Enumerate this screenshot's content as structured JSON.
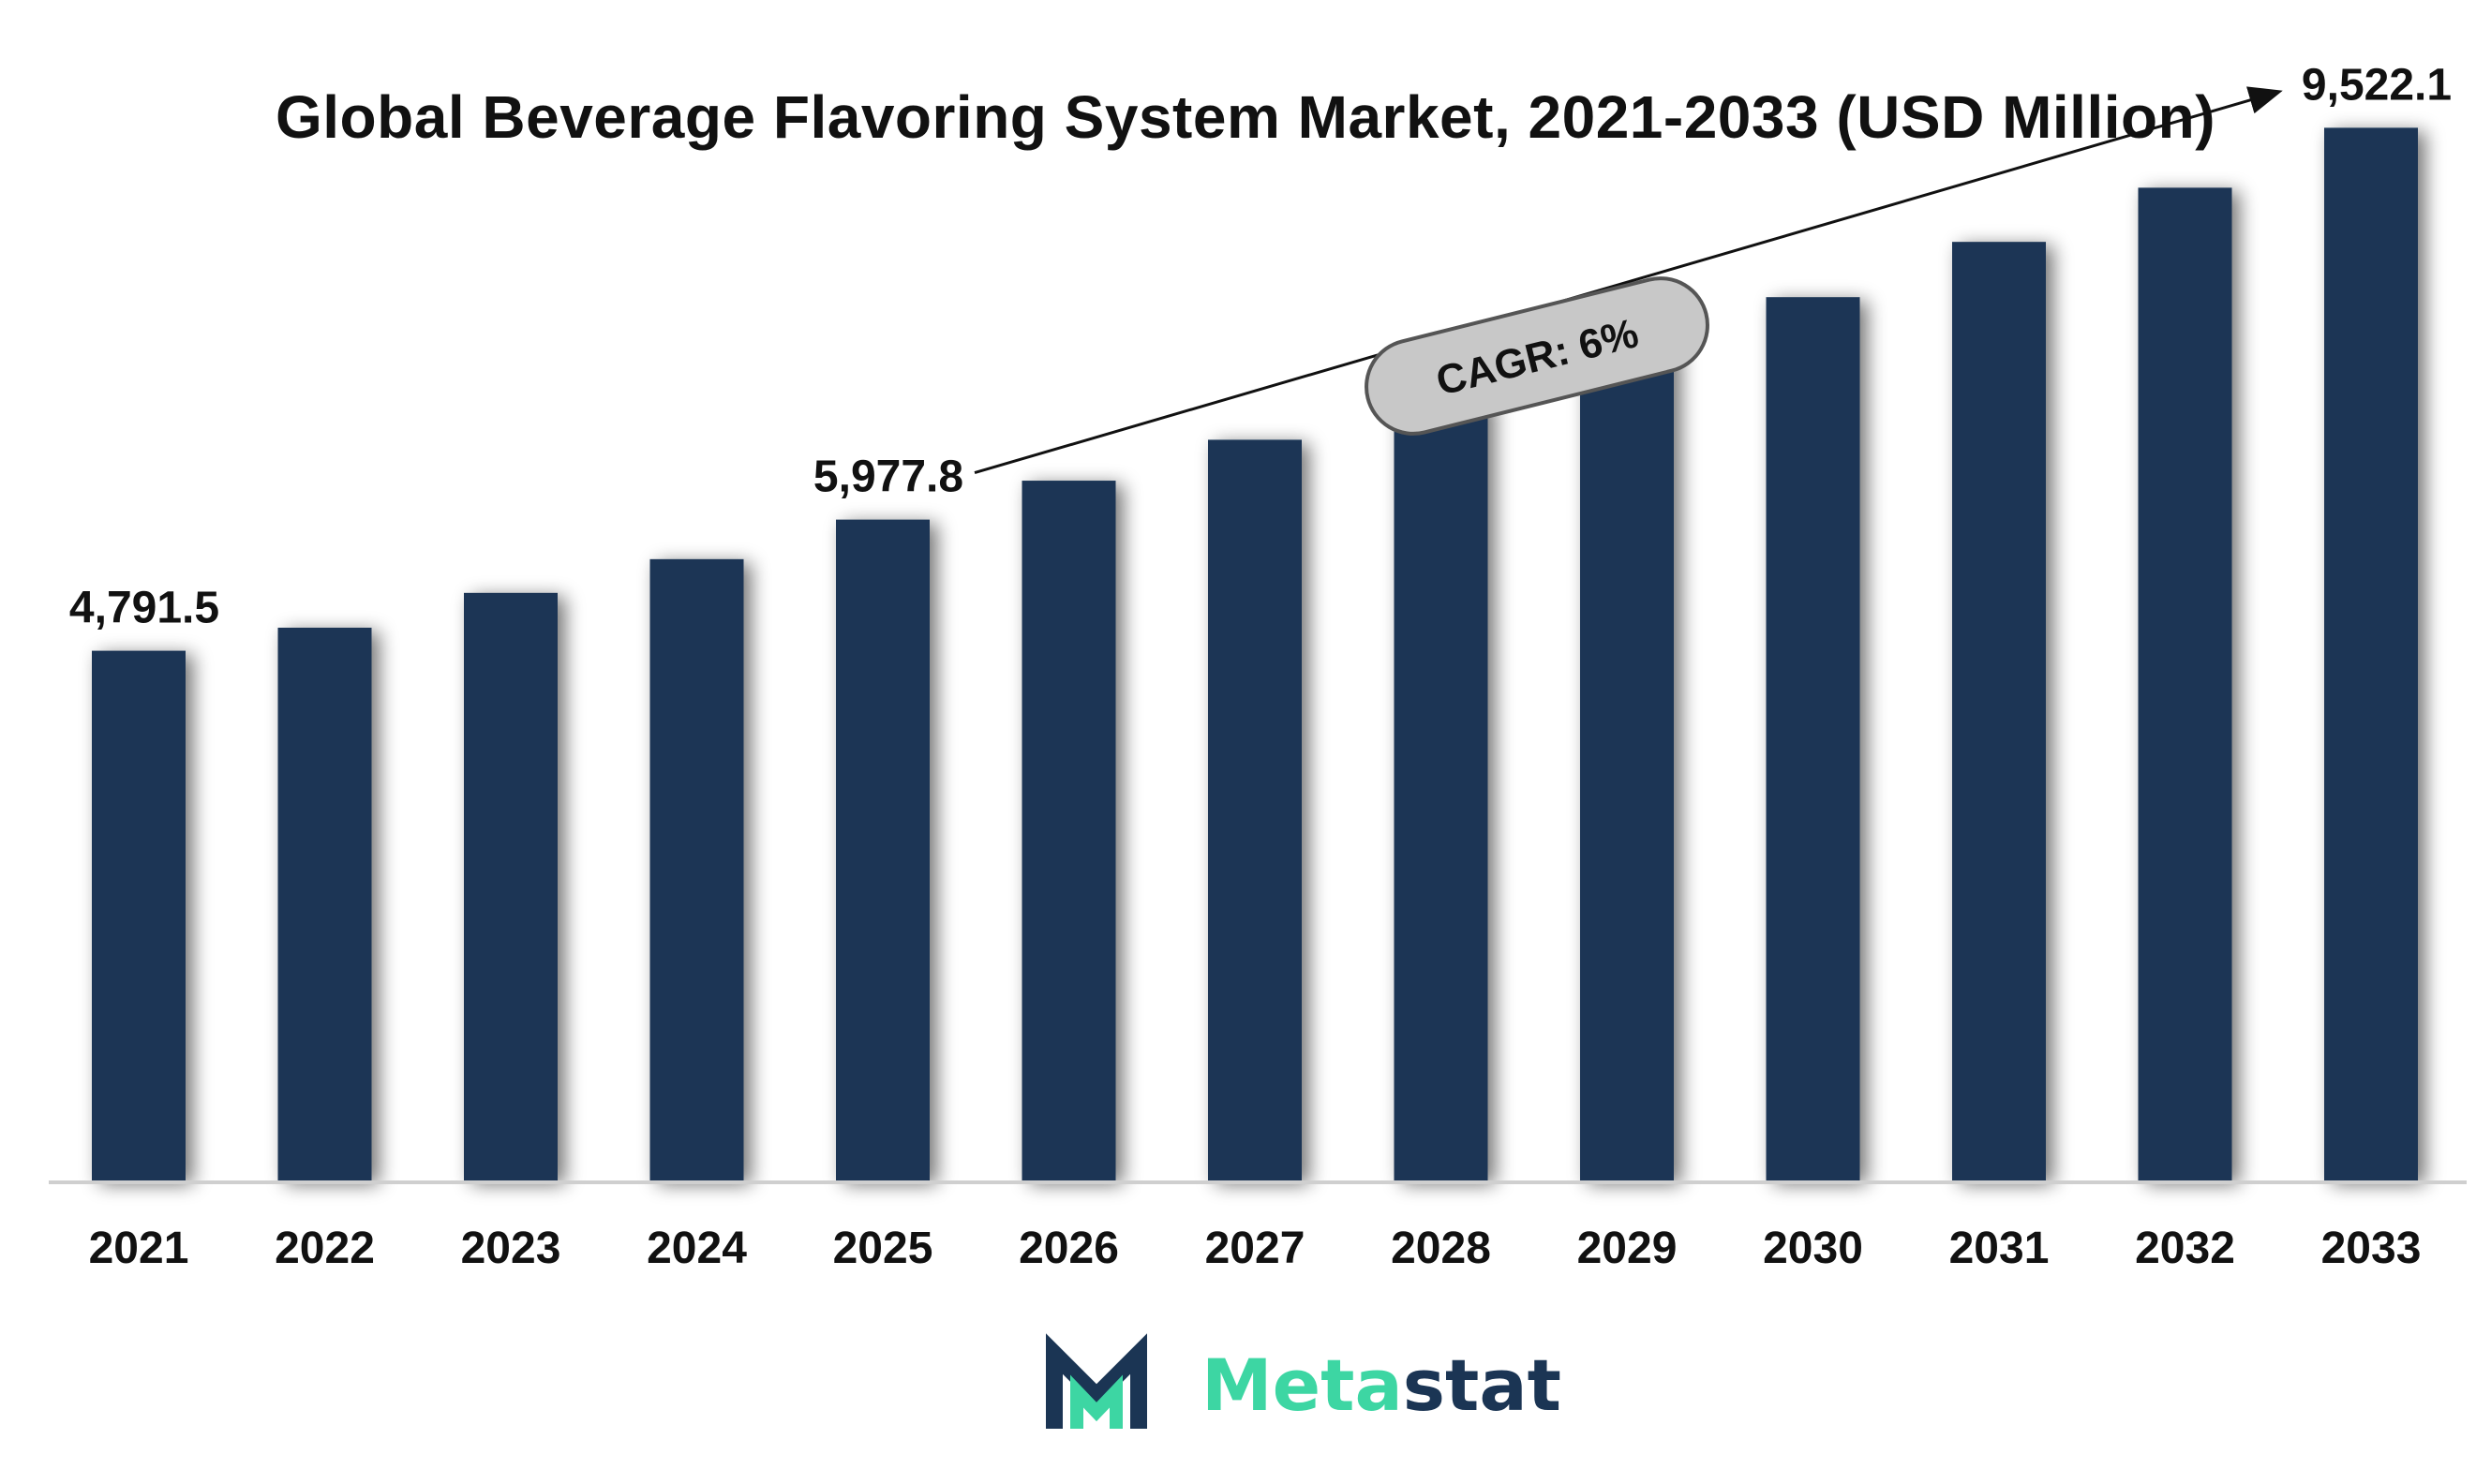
{
  "chart_data": {
    "type": "bar",
    "title": "Global Beverage Flavoring System Market, 2021-2033 (USD Million)",
    "categories": [
      "2021",
      "2022",
      "2023",
      "2024",
      "2025",
      "2026",
      "2027",
      "2028",
      "2029",
      "2030",
      "2031",
      "2032",
      "2033"
    ],
    "values": [
      4791.5,
      5000,
      5315,
      5620,
      5977.8,
      6330,
      6700,
      7080,
      7530,
      7990,
      8490,
      8980,
      9522.1
    ],
    "data_labels": [
      {
        "category": "2021",
        "text": "4,791.5"
      },
      {
        "category": "2025",
        "text": "5,977.8"
      },
      {
        "category": "2033",
        "text": "9,522.1"
      }
    ],
    "annotation": {
      "text": "CAGR: 6%",
      "from": "2025",
      "to": "2033"
    },
    "xlabel": "",
    "ylabel": "",
    "ylim": [
      0,
      10000
    ],
    "grid": false,
    "legend": "none",
    "colors": {
      "bar": "#1b3554",
      "axis": "#cfcfcf",
      "badge_fill": "#c8c8c8",
      "badge_stroke": "#555555"
    }
  },
  "logo": {
    "text_part1": "Meta",
    "text_part2": "stat",
    "color_part1": "#3dd6a3",
    "color_part2": "#1b3554",
    "icon": "metastat-m-icon"
  }
}
